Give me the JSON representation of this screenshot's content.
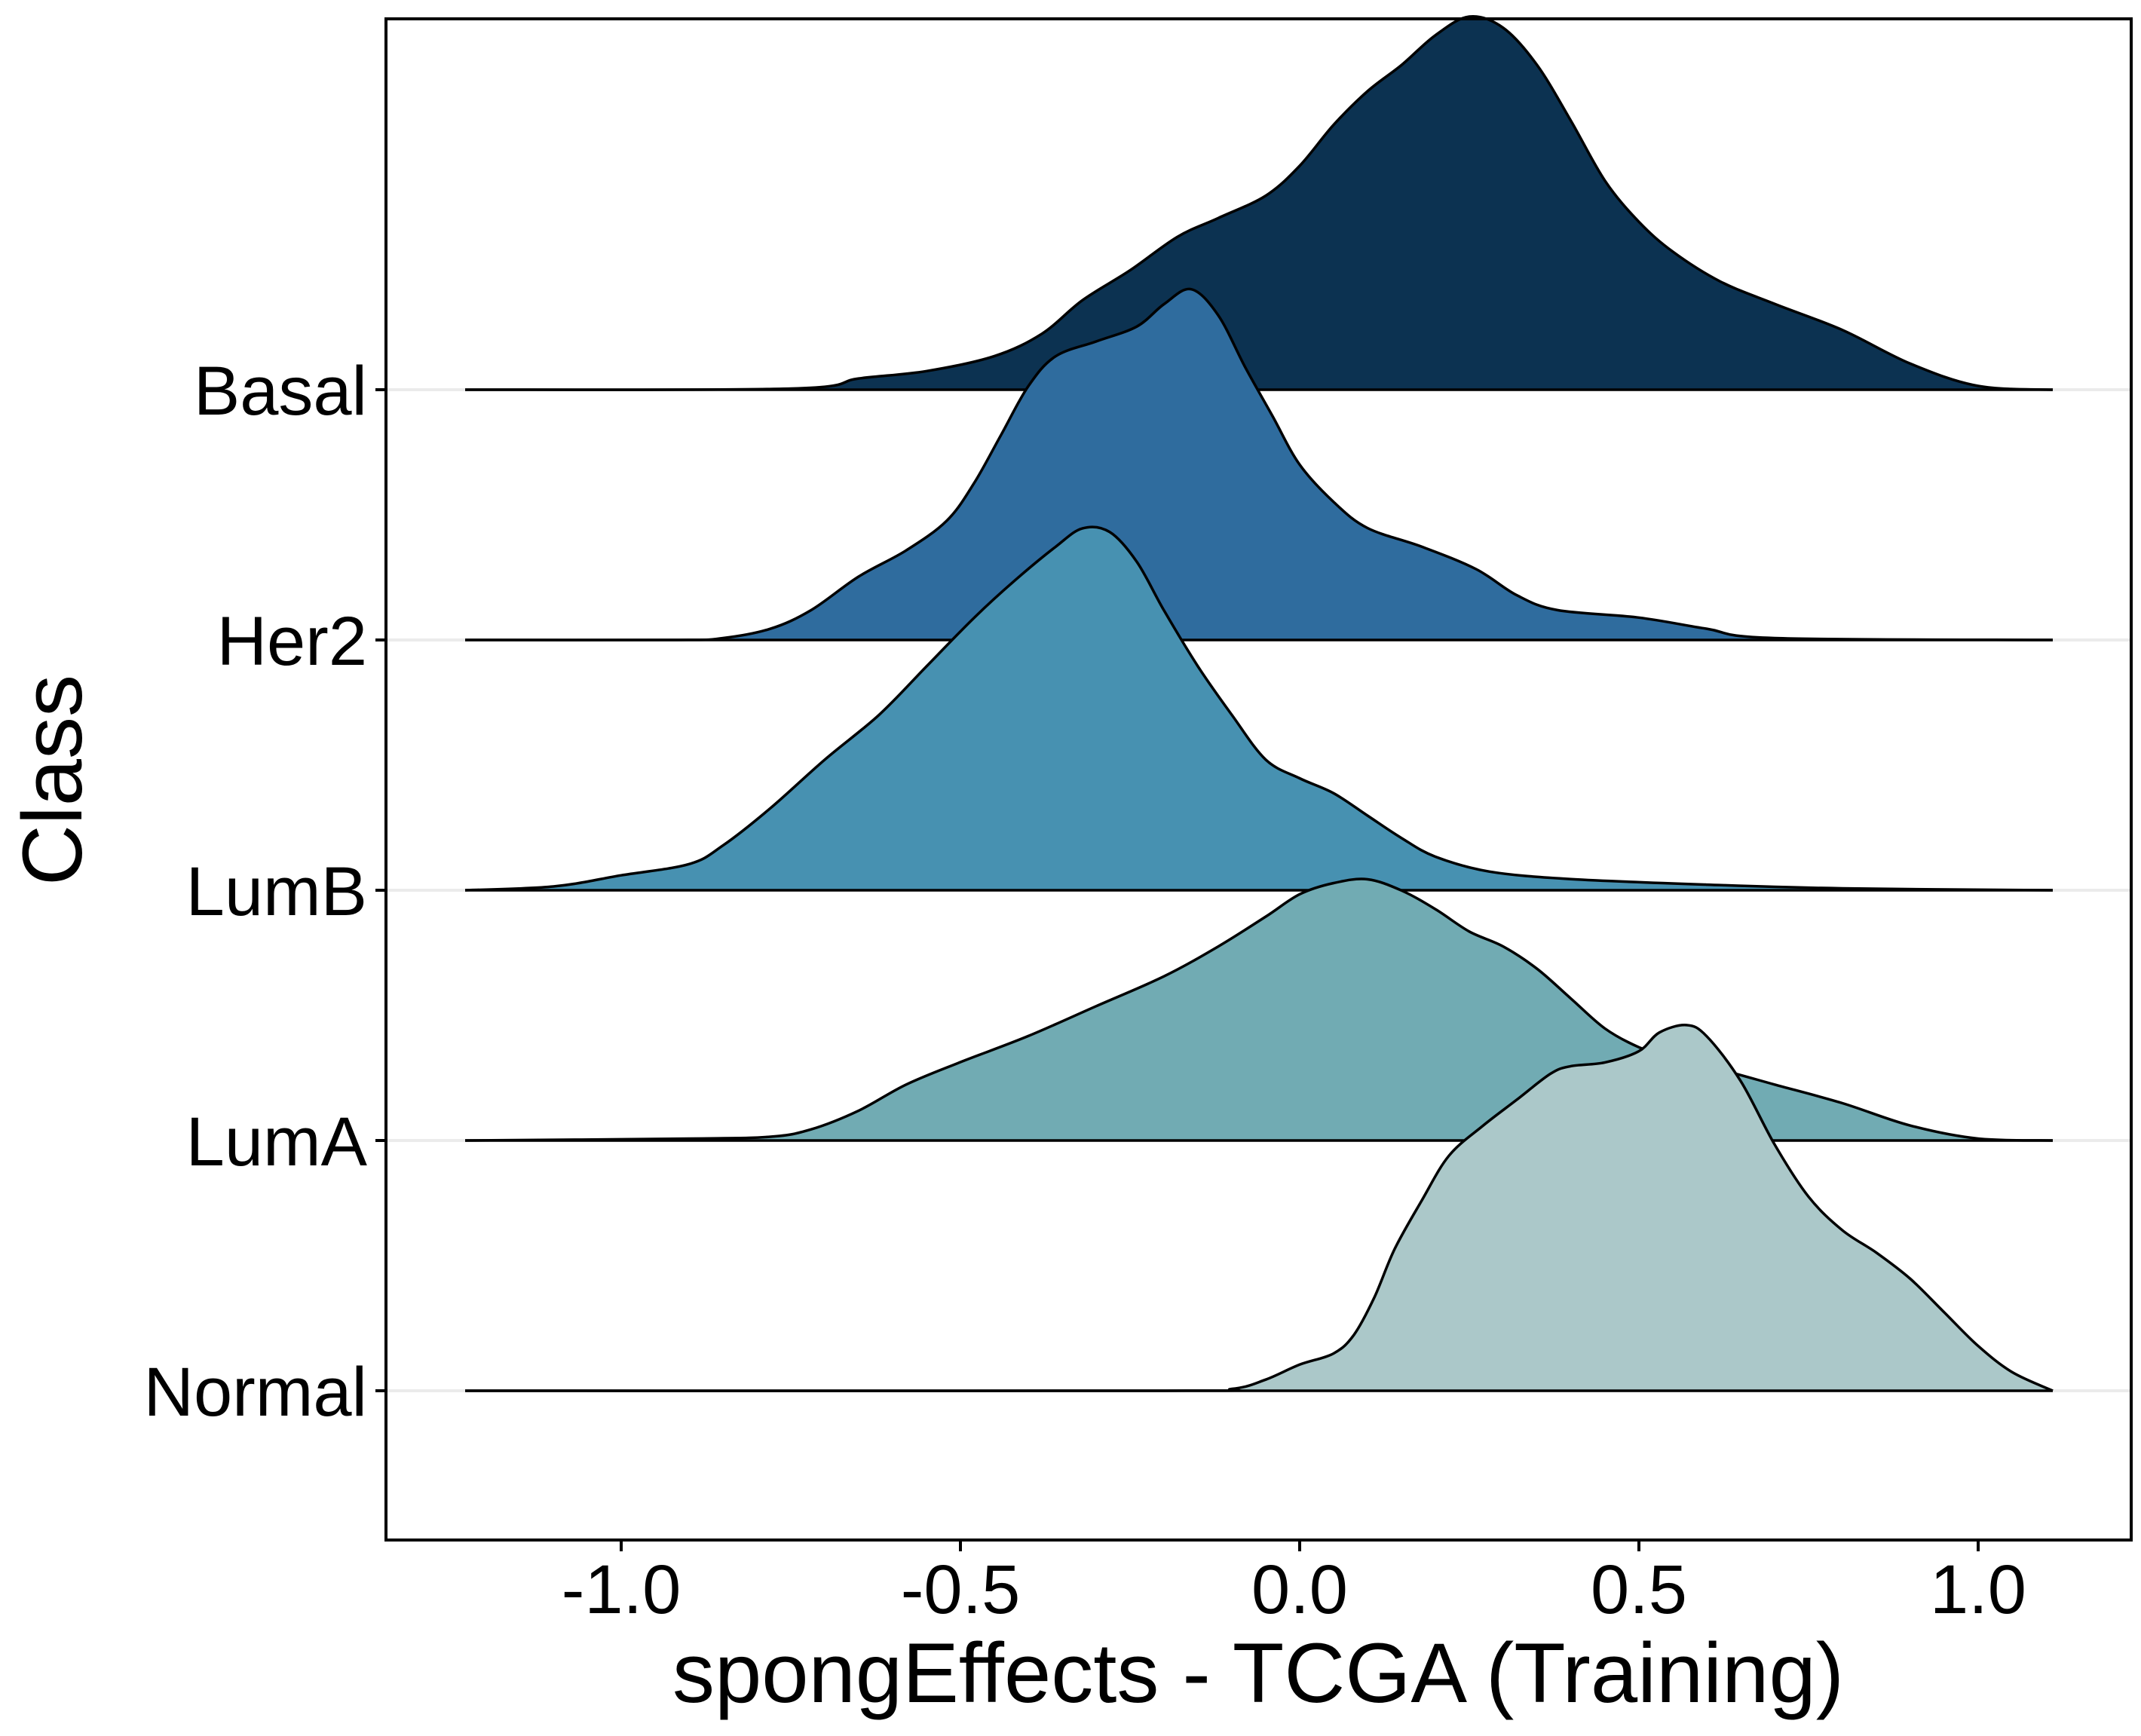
{
  "chart_data": {
    "type": "ridgeline",
    "xlabel": "spongEffects - TCGA (Training)",
    "ylabel": "Class",
    "xlim": [
      -1.35,
      1.22
    ],
    "xticks": [
      {
        "value": -1.0,
        "label": "-1.0"
      },
      {
        "value": -0.5,
        "label": "-0.5"
      },
      {
        "value": 0.0,
        "label": "0.0"
      },
      {
        "value": 0.5,
        "label": "0.5"
      },
      {
        "value": 1.0,
        "label": "1.0"
      }
    ],
    "x_range": [
      -1.23,
      1.11
    ],
    "grid": "horizontal lines at each class baseline",
    "categories": [
      "Basal",
      "Her2",
      "LumB",
      "LumA",
      "Normal"
    ],
    "series": [
      {
        "name": "Basal",
        "color": "#0c3251",
        "density": [
          [
            -1.23,
            0
          ],
          [
            -0.75,
            0.003
          ],
          [
            -0.65,
            0.03
          ],
          [
            -0.55,
            0.05
          ],
          [
            -0.45,
            0.09
          ],
          [
            -0.38,
            0.15
          ],
          [
            -0.32,
            0.24
          ],
          [
            -0.25,
            0.32
          ],
          [
            -0.18,
            0.41
          ],
          [
            -0.12,
            0.46
          ],
          [
            -0.05,
            0.52
          ],
          [
            0.0,
            0.6
          ],
          [
            0.05,
            0.71
          ],
          [
            0.1,
            0.8
          ],
          [
            0.15,
            0.87
          ],
          [
            0.2,
            0.95
          ],
          [
            0.25,
            1.0
          ],
          [
            0.3,
            0.97
          ],
          [
            0.35,
            0.87
          ],
          [
            0.4,
            0.72
          ],
          [
            0.45,
            0.56
          ],
          [
            0.5,
            0.45
          ],
          [
            0.55,
            0.37
          ],
          [
            0.62,
            0.29
          ],
          [
            0.7,
            0.23
          ],
          [
            0.8,
            0.16
          ],
          [
            0.9,
            0.07
          ],
          [
            1.0,
            0.01
          ],
          [
            1.11,
            0
          ]
        ]
      },
      {
        "name": "Her2",
        "color": "#2f6c9e",
        "density": [
          [
            -1.23,
            0
          ],
          [
            -0.92,
            0
          ],
          [
            -0.85,
            0.005
          ],
          [
            -0.78,
            0.03
          ],
          [
            -0.72,
            0.08
          ],
          [
            -0.65,
            0.17
          ],
          [
            -0.58,
            0.24
          ],
          [
            -0.52,
            0.32
          ],
          [
            -0.48,
            0.42
          ],
          [
            -0.44,
            0.55
          ],
          [
            -0.4,
            0.68
          ],
          [
            -0.36,
            0.76
          ],
          [
            -0.3,
            0.8
          ],
          [
            -0.24,
            0.84
          ],
          [
            -0.2,
            0.9
          ],
          [
            -0.16,
            0.94
          ],
          [
            -0.12,
            0.87
          ],
          [
            -0.08,
            0.73
          ],
          [
            -0.04,
            0.6
          ],
          [
            0.0,
            0.47
          ],
          [
            0.05,
            0.37
          ],
          [
            0.1,
            0.3
          ],
          [
            0.18,
            0.25
          ],
          [
            0.26,
            0.19
          ],
          [
            0.32,
            0.12
          ],
          [
            0.38,
            0.08
          ],
          [
            0.5,
            0.06
          ],
          [
            0.6,
            0.03
          ],
          [
            0.7,
            0.005
          ],
          [
            1.11,
            0
          ]
        ]
      },
      {
        "name": "LumB",
        "color": "#4791b1",
        "density": [
          [
            -1.23,
            0
          ],
          [
            -1.1,
            0.01
          ],
          [
            -1.0,
            0.04
          ],
          [
            -0.9,
            0.07
          ],
          [
            -0.85,
            0.12
          ],
          [
            -0.78,
            0.22
          ],
          [
            -0.7,
            0.35
          ],
          [
            -0.62,
            0.47
          ],
          [
            -0.55,
            0.6
          ],
          [
            -0.48,
            0.73
          ],
          [
            -0.42,
            0.83
          ],
          [
            -0.36,
            0.92
          ],
          [
            -0.32,
            0.97
          ],
          [
            -0.28,
            0.96
          ],
          [
            -0.24,
            0.88
          ],
          [
            -0.2,
            0.75
          ],
          [
            -0.15,
            0.6
          ],
          [
            -0.1,
            0.47
          ],
          [
            -0.05,
            0.35
          ],
          [
            0.0,
            0.3
          ],
          [
            0.05,
            0.26
          ],
          [
            0.1,
            0.2
          ],
          [
            0.15,
            0.14
          ],
          [
            0.2,
            0.09
          ],
          [
            0.28,
            0.05
          ],
          [
            0.4,
            0.03
          ],
          [
            0.6,
            0.015
          ],
          [
            0.8,
            0.005
          ],
          [
            1.11,
            0
          ]
        ]
      },
      {
        "name": "LumA",
        "color": "#71abb3",
        "density": [
          [
            -1.23,
            0
          ],
          [
            -0.9,
            0.005
          ],
          [
            -0.78,
            0.01
          ],
          [
            -0.72,
            0.03
          ],
          [
            -0.65,
            0.08
          ],
          [
            -0.58,
            0.15
          ],
          [
            -0.5,
            0.21
          ],
          [
            -0.4,
            0.28
          ],
          [
            -0.3,
            0.36
          ],
          [
            -0.2,
            0.44
          ],
          [
            -0.12,
            0.52
          ],
          [
            -0.05,
            0.6
          ],
          [
            0.0,
            0.66
          ],
          [
            0.05,
            0.69
          ],
          [
            0.1,
            0.7
          ],
          [
            0.15,
            0.67
          ],
          [
            0.2,
            0.62
          ],
          [
            0.25,
            0.56
          ],
          [
            0.3,
            0.52
          ],
          [
            0.35,
            0.46
          ],
          [
            0.4,
            0.38
          ],
          [
            0.45,
            0.3
          ],
          [
            0.5,
            0.25
          ],
          [
            0.55,
            0.22
          ],
          [
            0.62,
            0.19
          ],
          [
            0.7,
            0.15
          ],
          [
            0.8,
            0.1
          ],
          [
            0.9,
            0.04
          ],
          [
            1.0,
            0.005
          ],
          [
            1.11,
            0
          ]
        ]
      },
      {
        "name": "Normal",
        "color": "#abc8c9",
        "density": [
          [
            -1.23,
            0
          ],
          [
            -0.2,
            0
          ],
          [
            -0.1,
            0.005
          ],
          [
            -0.05,
            0.03
          ],
          [
            0.0,
            0.07
          ],
          [
            0.05,
            0.1
          ],
          [
            0.08,
            0.15
          ],
          [
            0.11,
            0.25
          ],
          [
            0.14,
            0.38
          ],
          [
            0.18,
            0.51
          ],
          [
            0.22,
            0.63
          ],
          [
            0.27,
            0.71
          ],
          [
            0.32,
            0.78
          ],
          [
            0.37,
            0.85
          ],
          [
            0.4,
            0.87
          ],
          [
            0.45,
            0.88
          ],
          [
            0.5,
            0.91
          ],
          [
            0.53,
            0.96
          ],
          [
            0.57,
            0.98
          ],
          [
            0.6,
            0.95
          ],
          [
            0.65,
            0.83
          ],
          [
            0.7,
            0.66
          ],
          [
            0.75,
            0.52
          ],
          [
            0.8,
            0.43
          ],
          [
            0.85,
            0.37
          ],
          [
            0.9,
            0.3
          ],
          [
            0.95,
            0.21
          ],
          [
            1.0,
            0.12
          ],
          [
            1.05,
            0.05
          ],
          [
            1.11,
            0
          ]
        ]
      }
    ]
  }
}
